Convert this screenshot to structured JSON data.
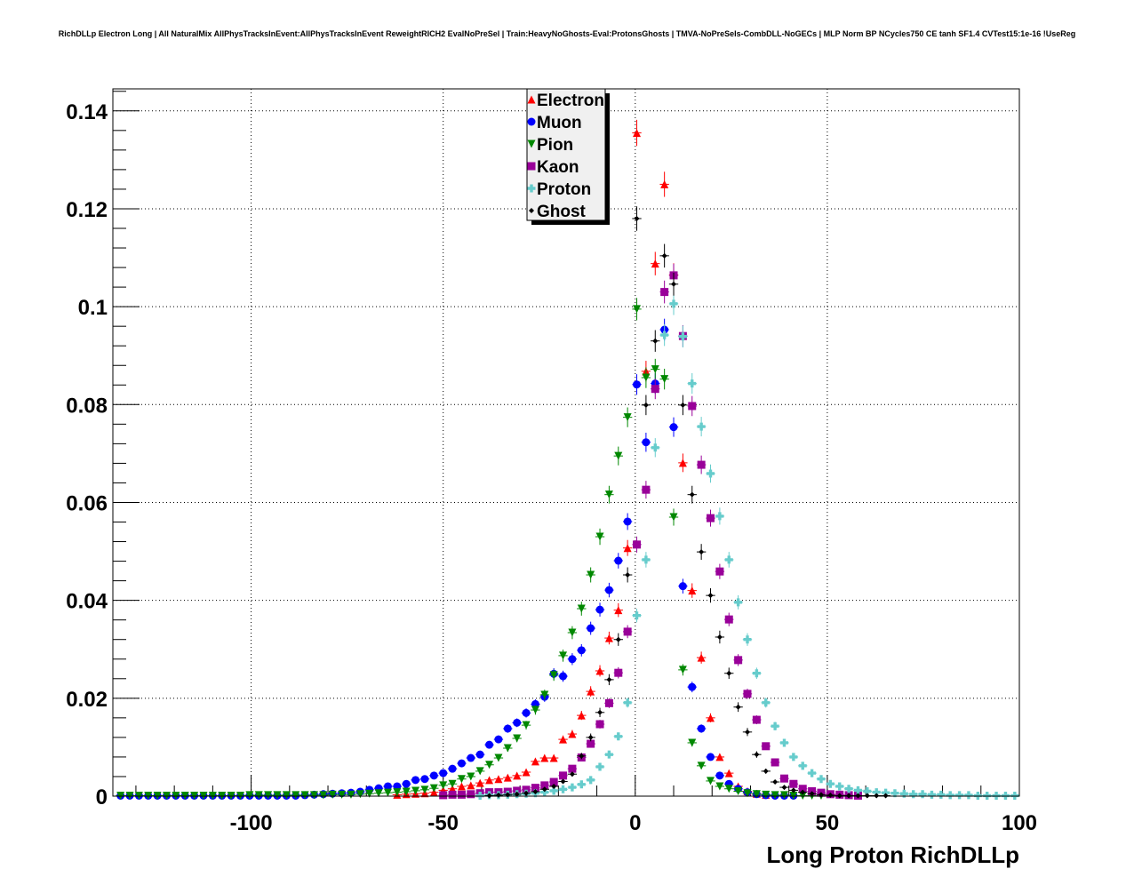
{
  "chart_data": {
    "type": "scatter",
    "title": "RichDLLp Electron Long | All NaturalMix AllPhysTracksInEvent:AllPhysTracksInEvent ReweightRICH2 EvalNoPreSel | Train:HeavyNoGhosts-Eval:ProtonsGhosts | TMVA-NoPreSels-CombDLL-NoGECs | MLP Norm BP NCycles750 CE tanh SF1.4 CVTest15:1e-16 !UseReg",
    "xlabel": "Long Proton RichDLLp",
    "ylabel": "",
    "xlim": [
      -136,
      100
    ],
    "ylim": [
      0,
      0.1445
    ],
    "grid": true,
    "legend_position": "top-center",
    "bin_width": 2.4,
    "x_ticks": [
      "-100",
      "-50",
      "0",
      "50",
      "100"
    ],
    "x_tick_values": [
      -100,
      -50,
      0,
      50,
      100
    ],
    "y_ticks": [
      "0",
      "0.02",
      "0.04",
      "0.06",
      "0.08",
      "0.1",
      "0.12",
      "0.14"
    ],
    "y_tick_values": [
      0,
      0.02,
      0.04,
      0.06,
      0.08,
      0.1,
      0.12,
      0.14
    ],
    "series": [
      {
        "name": "Electron",
        "color": "#ff0000",
        "marker": "triangle-up",
        "x_first": -62.0,
        "y": [
          0.0003,
          0.0004,
          0.0005,
          0.0006,
          0.0008,
          0.0012,
          0.0015,
          0.002,
          0.0022,
          0.0027,
          0.0033,
          0.0035,
          0.0038,
          0.0042,
          0.0049,
          0.0071,
          0.0078,
          0.0078,
          0.0116,
          0.0127,
          0.0165,
          0.0214,
          0.0256,
          0.0323,
          0.038,
          0.0507,
          0.1355,
          0.0868,
          0.1088,
          0.125,
          0.1065,
          0.0681,
          0.042,
          0.0283,
          0.016,
          0.008,
          0.0047,
          0.002,
          0.001,
          0.0005,
          0.0003
        ]
      },
      {
        "name": "Muon",
        "color": "#0000ff",
        "marker": "circle",
        "x_first": -136.4,
        "y": [
          0.0001,
          0.0001,
          0.0001,
          0.0001,
          0.0001,
          0.0001,
          0.0001,
          0.0001,
          0.0001,
          0.0001,
          0.0001,
          0.0001,
          0.0001,
          0.0001,
          0.0001,
          0.0001,
          0.0001,
          0.0001,
          0.0001,
          0.0001,
          0.0001,
          0.0002,
          0.0003,
          0.0004,
          0.0005,
          0.0006,
          0.0007,
          0.0009,
          0.0013,
          0.0016,
          0.002,
          0.002,
          0.0025,
          0.0033,
          0.0035,
          0.0042,
          0.0047,
          0.0056,
          0.0067,
          0.0078,
          0.0085,
          0.0105,
          0.0116,
          0.0138,
          0.015,
          0.017,
          0.0188,
          0.0203,
          0.025,
          0.0245,
          0.028,
          0.0298,
          0.0343,
          0.0381,
          0.0421,
          0.0481,
          0.0561,
          0.0841,
          0.0723,
          0.0843,
          0.0953,
          0.0754,
          0.0429,
          0.0223,
          0.0138,
          0.008,
          0.0042,
          0.0025,
          0.0015,
          0.0008,
          0.0004,
          0.0002,
          0.0001,
          0.0001,
          0.0001
        ]
      },
      {
        "name": "Pion",
        "color": "#008800",
        "marker": "triangle-down",
        "x_first": -134.0,
        "y": [
          0.0001,
          0.0001,
          0.0001,
          0.0001,
          0.0001,
          0.0001,
          0.0001,
          0.0001,
          0.0001,
          0.0001,
          0.0001,
          0.0001,
          0.0001,
          0.0001,
          0.0002,
          0.0002,
          0.0002,
          0.0002,
          0.0002,
          0.0002,
          0.0002,
          0.0002,
          0.0002,
          0.0003,
          0.0003,
          0.0003,
          0.0004,
          0.0005,
          0.0006,
          0.0007,
          0.0008,
          0.0009,
          0.0011,
          0.0013,
          0.0016,
          0.0022,
          0.0025,
          0.0035,
          0.004,
          0.0051,
          0.0064,
          0.0078,
          0.0098,
          0.0118,
          0.0145,
          0.0176,
          0.0207,
          0.0247,
          0.0287,
          0.0334,
          0.0383,
          0.0452,
          0.053,
          0.0616,
          0.0695,
          0.0774,
          0.0995,
          0.0855,
          0.0872,
          0.0852,
          0.057,
          0.0258,
          0.0109,
          0.0062,
          0.0031,
          0.002,
          0.0015,
          0.001,
          0.0006,
          0.0004,
          0.0003,
          0.0002,
          0.0002,
          0.0001,
          0.0001,
          0.0001,
          0.0001
        ]
      },
      {
        "name": "Kaon",
        "color": "#990099",
        "marker": "square",
        "x_first": -50.0,
        "y": [
          0.0002,
          0.0003,
          0.0003,
          0.0004,
          0.0006,
          0.0008,
          0.0008,
          0.0009,
          0.0011,
          0.0013,
          0.0017,
          0.0022,
          0.0029,
          0.0042,
          0.0056,
          0.0079,
          0.0107,
          0.0147,
          0.019,
          0.0252,
          0.0336,
          0.0514,
          0.0626,
          0.0832,
          0.103,
          0.1064,
          0.094,
          0.0797,
          0.0677,
          0.0568,
          0.0459,
          0.0361,
          0.0278,
          0.0209,
          0.0156,
          0.0102,
          0.0069,
          0.0036,
          0.0025,
          0.0015,
          0.001,
          0.0007,
          0.0004,
          0.0003,
          0.0002,
          0.0001
        ]
      },
      {
        "name": "Proton",
        "color": "#66cccc",
        "marker": "cross",
        "x_first": -40.4,
        "y": [
          0.0001,
          0.0002,
          0.0002,
          0.0003,
          0.0004,
          0.0005,
          0.0006,
          0.0008,
          0.0011,
          0.0014,
          0.0018,
          0.0024,
          0.0033,
          0.006,
          0.0085,
          0.0122,
          0.0191,
          0.0369,
          0.0483,
          0.0712,
          0.0942,
          0.1006,
          0.0939,
          0.0843,
          0.0755,
          0.0659,
          0.0572,
          0.0483,
          0.0396,
          0.032,
          0.0251,
          0.0191,
          0.0143,
          0.0109,
          0.008,
          0.0062,
          0.0047,
          0.0035,
          0.0025,
          0.002,
          0.0015,
          0.0012,
          0.001,
          0.0008,
          0.0007,
          0.0006,
          0.0005,
          0.0004,
          0.0004,
          0.0003,
          0.0003,
          0.0002,
          0.0002,
          0.0002,
          0.0001,
          0.0001,
          0.0001,
          0.0001,
          0.0001
        ]
      },
      {
        "name": "Ghost",
        "color": "#000000",
        "marker": "diamond",
        "x_first": -38.0,
        "y": [
          0.0001,
          0.0002,
          0.0003,
          0.0004,
          0.0006,
          0.0009,
          0.0014,
          0.002,
          0.003,
          0.0045,
          0.0082,
          0.012,
          0.0171,
          0.0238,
          0.032,
          0.0452,
          0.118,
          0.0799,
          0.093,
          0.1104,
          0.1046,
          0.0799,
          0.0616,
          0.0499,
          0.041,
          0.0325,
          0.0251,
          0.0182,
          0.0131,
          0.0085,
          0.0051,
          0.0029,
          0.0018,
          0.0012,
          0.0008,
          0.0005,
          0.0003,
          0.0002,
          0.0001,
          0.0001,
          0.0001,
          0.0001,
          0.0001,
          0.0001
        ]
      }
    ]
  }
}
